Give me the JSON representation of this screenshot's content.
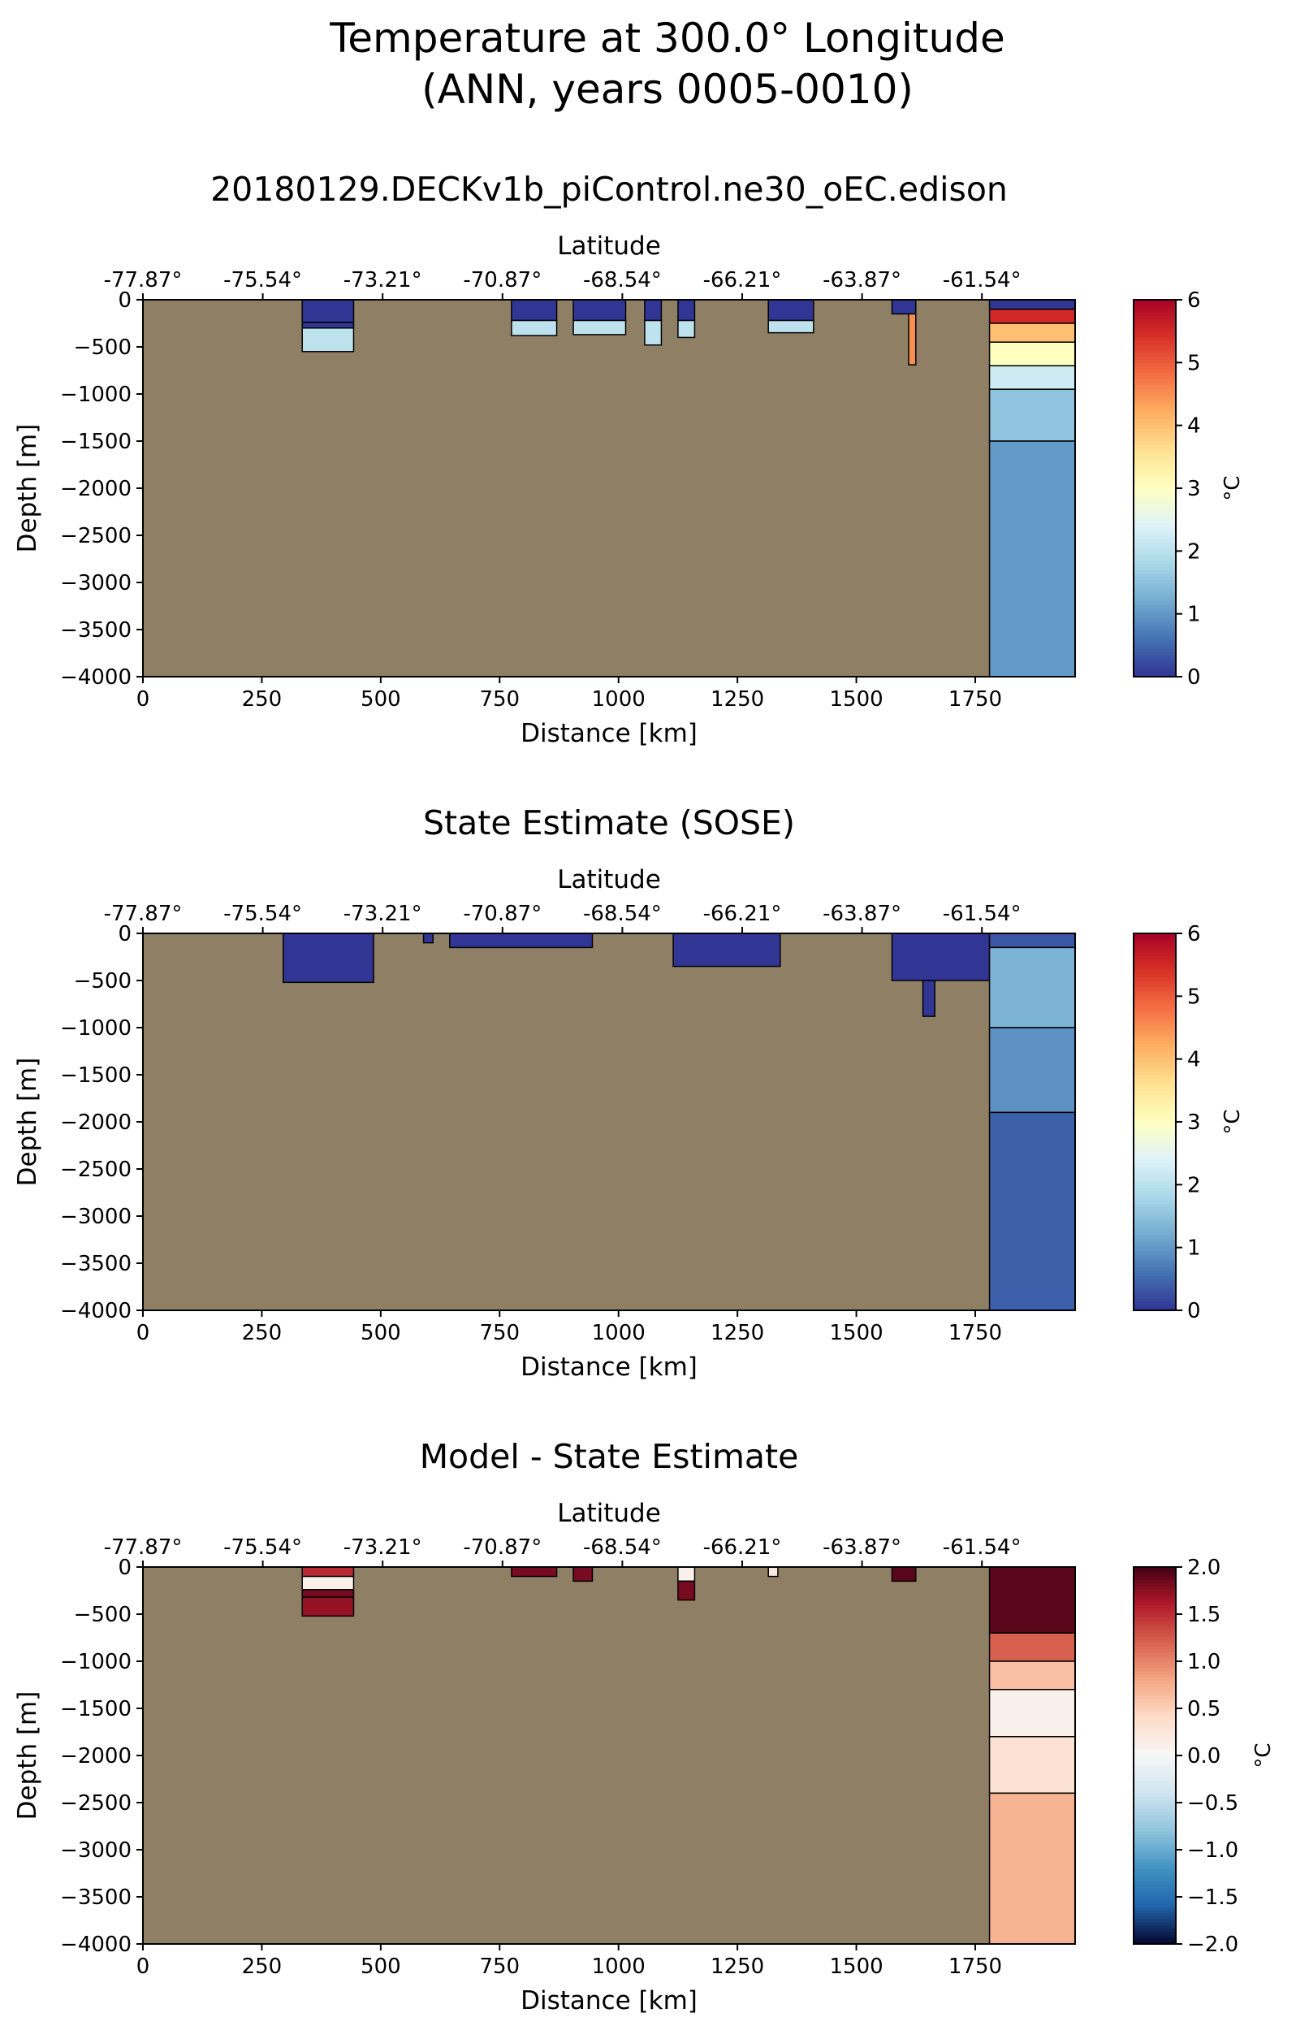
{
  "figure": {
    "title_line1": "Temperature at 300.0° Longitude",
    "title_line2": "(ANN, years 0005-0010)"
  },
  "colors": {
    "land": "#8f7f65",
    "contour": "#000000"
  },
  "chart_data": [
    {
      "type": "heatmap",
      "title": "20180129.DECKv1b_piControl.ne30_oEC.edison",
      "xlabel": "Distance [km]",
      "ylabel": "Depth [m]",
      "top_xlabel": "Latitude",
      "xlim": [
        0,
        1960
      ],
      "ylim": [
        -4000,
        0
      ],
      "x_ticks": [
        "0",
        "250",
        "500",
        "750",
        "1000",
        "1250",
        "1500",
        "1750"
      ],
      "y_ticks": [
        "0",
        "-500",
        "-1000",
        "-1500",
        "-2000",
        "-2500",
        "-3000",
        "-3500",
        "-4000"
      ],
      "lat_ticks": [
        "-77.87°",
        "-75.54°",
        "-73.21°",
        "-70.87°",
        "-68.54°",
        "-66.21°",
        "-63.87°",
        "-61.54°"
      ],
      "colorbar": {
        "label": "°C",
        "range": [
          0,
          6
        ],
        "ticks": [
          "0",
          "1",
          "2",
          "3",
          "4",
          "5",
          "6"
        ],
        "colormap": "RdYlBu_r"
      },
      "ocean_cells": [
        {
          "x0": 335,
          "x1": 443,
          "top": 0,
          "bottom": -240,
          "value": 0.0
        },
        {
          "x0": 335,
          "x1": 443,
          "top": -240,
          "bottom": -300,
          "value": 0.0
        },
        {
          "x0": 335,
          "x1": 443,
          "top": -300,
          "bottom": -550,
          "value": 2.0
        },
        {
          "x0": 775,
          "x1": 870,
          "top": 0,
          "bottom": -220,
          "value": 0.0
        },
        {
          "x0": 775,
          "x1": 870,
          "top": -220,
          "bottom": -380,
          "value": 2.0
        },
        {
          "x0": 905,
          "x1": 1015,
          "top": 0,
          "bottom": -220,
          "value": 0.0
        },
        {
          "x0": 905,
          "x1": 1015,
          "top": -220,
          "bottom": -370,
          "value": 2.0
        },
        {
          "x0": 1055,
          "x1": 1090,
          "top": 0,
          "bottom": -220,
          "value": 0.0
        },
        {
          "x0": 1055,
          "x1": 1090,
          "top": -220,
          "bottom": -480,
          "value": 2.0
        },
        {
          "x0": 1125,
          "x1": 1160,
          "top": 0,
          "bottom": -220,
          "value": 0.0
        },
        {
          "x0": 1125,
          "x1": 1160,
          "top": -220,
          "bottom": -400,
          "value": 2.0
        },
        {
          "x0": 1315,
          "x1": 1410,
          "top": 0,
          "bottom": -220,
          "value": 0.0
        },
        {
          "x0": 1315,
          "x1": 1410,
          "top": -220,
          "bottom": -350,
          "value": 2.0
        },
        {
          "x0": 1575,
          "x1": 1625,
          "top": 0,
          "bottom": -150,
          "value": 0.0
        },
        {
          "x0": 1610,
          "x1": 1625,
          "top": -150,
          "bottom": -690,
          "value": 4.5
        },
        {
          "x0": 1780,
          "x1": 1960,
          "top": 0,
          "bottom": -100,
          "value": 0.0
        },
        {
          "x0": 1780,
          "x1": 1960,
          "top": -100,
          "bottom": -250,
          "value": 5.5
        },
        {
          "x0": 1780,
          "x1": 1960,
          "top": -250,
          "bottom": -450,
          "value": 4.0
        },
        {
          "x0": 1780,
          "x1": 1960,
          "top": -450,
          "bottom": -700,
          "value": 3.0
        },
        {
          "x0": 1780,
          "x1": 1960,
          "top": -700,
          "bottom": -950,
          "value": 2.2
        },
        {
          "x0": 1780,
          "x1": 1960,
          "top": -950,
          "bottom": -1500,
          "value": 1.5
        },
        {
          "x0": 1780,
          "x1": 1960,
          "top": -1500,
          "bottom": -4000,
          "value": 1.0
        }
      ]
    },
    {
      "type": "heatmap",
      "title": "State Estimate (SOSE)",
      "xlabel": "Distance [km]",
      "ylabel": "Depth [m]",
      "top_xlabel": "Latitude",
      "xlim": [
        0,
        1960
      ],
      "ylim": [
        -4000,
        0
      ],
      "x_ticks": [
        "0",
        "250",
        "500",
        "750",
        "1000",
        "1250",
        "1500",
        "1750"
      ],
      "y_ticks": [
        "0",
        "-500",
        "-1000",
        "-1500",
        "-2000",
        "-2500",
        "-3000",
        "-3500",
        "-4000"
      ],
      "lat_ticks": [
        "-77.87°",
        "-75.54°",
        "-73.21°",
        "-70.87°",
        "-68.54°",
        "-66.21°",
        "-63.87°",
        "-61.54°"
      ],
      "colorbar": {
        "label": "°C",
        "range": [
          0,
          6
        ],
        "ticks": [
          "0",
          "1",
          "2",
          "3",
          "4",
          "5",
          "6"
        ],
        "colormap": "RdYlBu_r"
      },
      "ocean_cells": [
        {
          "x0": 295,
          "x1": 485,
          "top": 0,
          "bottom": -520,
          "value": 0.0
        },
        {
          "x0": 590,
          "x1": 610,
          "top": 0,
          "bottom": -100,
          "value": 0.0
        },
        {
          "x0": 645,
          "x1": 945,
          "top": 0,
          "bottom": -150,
          "value": 0.0
        },
        {
          "x0": 1115,
          "x1": 1340,
          "top": 0,
          "bottom": -350,
          "value": 0.0
        },
        {
          "x0": 1575,
          "x1": 1780,
          "top": 0,
          "bottom": -500,
          "value": 0.0
        },
        {
          "x0": 1640,
          "x1": 1665,
          "top": -500,
          "bottom": -880,
          "value": 0.0
        },
        {
          "x0": 1780,
          "x1": 1960,
          "top": 0,
          "bottom": -150,
          "value": 0.3
        },
        {
          "x0": 1780,
          "x1": 1960,
          "top": -150,
          "bottom": -1000,
          "value": 1.3
        },
        {
          "x0": 1780,
          "x1": 1960,
          "top": -1000,
          "bottom": -1900,
          "value": 0.9
        },
        {
          "x0": 1780,
          "x1": 1960,
          "top": -1900,
          "bottom": -4000,
          "value": 0.4
        }
      ]
    },
    {
      "type": "heatmap",
      "title": "Model - State Estimate",
      "xlabel": "Distance [km]",
      "ylabel": "Depth [m]",
      "top_xlabel": "Latitude",
      "xlim": [
        0,
        1960
      ],
      "ylim": [
        -4000,
        0
      ],
      "x_ticks": [
        "0",
        "250",
        "500",
        "750",
        "1000",
        "1250",
        "1500",
        "1750"
      ],
      "y_ticks": [
        "0",
        "-500",
        "-1000",
        "-1500",
        "-2000",
        "-2500",
        "-3000",
        "-3500",
        "-4000"
      ],
      "lat_ticks": [
        "-77.87°",
        "-75.54°",
        "-73.21°",
        "-70.87°",
        "-68.54°",
        "-66.21°",
        "-63.87°",
        "-61.54°"
      ],
      "colorbar": {
        "label": "°C",
        "range": [
          -2,
          2
        ],
        "ticks": [
          "−2.0",
          "−1.5",
          "−1.0",
          "−0.5",
          "0.0",
          "0.5",
          "1.0",
          "1.5",
          "2.0"
        ],
        "colormap": "RdBu_r"
      },
      "ocean_cells": [
        {
          "x0": 335,
          "x1": 443,
          "top": 0,
          "bottom": -100,
          "value": 1.5
        },
        {
          "x0": 335,
          "x1": 443,
          "top": -100,
          "bottom": -240,
          "value": 0.1
        },
        {
          "x0": 335,
          "x1": 443,
          "top": -240,
          "bottom": -320,
          "value": 1.8
        },
        {
          "x0": 335,
          "x1": 443,
          "top": -320,
          "bottom": -520,
          "value": 1.7
        },
        {
          "x0": 775,
          "x1": 870,
          "top": 0,
          "bottom": -100,
          "value": 1.8
        },
        {
          "x0": 905,
          "x1": 945,
          "top": 0,
          "bottom": -150,
          "value": 1.8
        },
        {
          "x0": 1125,
          "x1": 1160,
          "top": 0,
          "bottom": -150,
          "value": 0.1
        },
        {
          "x0": 1125,
          "x1": 1160,
          "top": -150,
          "bottom": -350,
          "value": 1.8
        },
        {
          "x0": 1315,
          "x1": 1335,
          "top": 0,
          "bottom": -100,
          "value": 0.2
        },
        {
          "x0": 1575,
          "x1": 1625,
          "top": 0,
          "bottom": -150,
          "value": 1.9
        },
        {
          "x0": 1780,
          "x1": 1960,
          "top": 0,
          "bottom": -700,
          "value": 1.9
        },
        {
          "x0": 1780,
          "x1": 1960,
          "top": -700,
          "bottom": -1000,
          "value": 1.2
        },
        {
          "x0": 1780,
          "x1": 1960,
          "top": -1000,
          "bottom": -1300,
          "value": 0.6
        },
        {
          "x0": 1780,
          "x1": 1960,
          "top": -1300,
          "bottom": -1800,
          "value": 0.1
        },
        {
          "x0": 1780,
          "x1": 1960,
          "top": -1800,
          "bottom": -2400,
          "value": 0.3
        },
        {
          "x0": 1780,
          "x1": 1960,
          "top": -2400,
          "bottom": -4000,
          "value": 0.7
        }
      ]
    }
  ]
}
